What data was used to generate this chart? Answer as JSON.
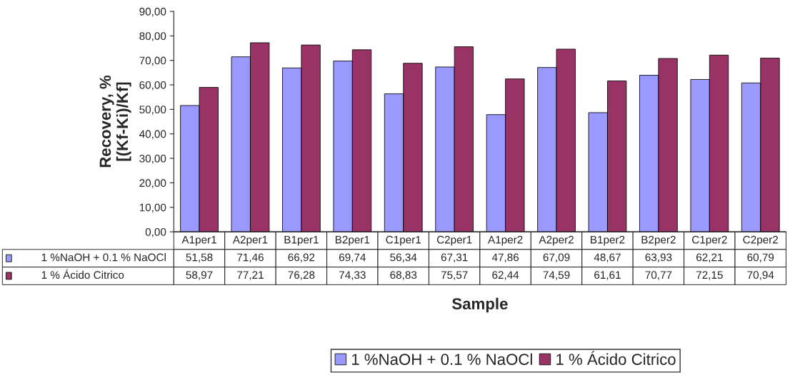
{
  "chart_data": {
    "type": "bar",
    "xlabel": "Sample",
    "ylabel": "Recovery, %\n[(Kf-Ki)/Kf]",
    "categories": [
      "A1per1",
      "A2per1",
      "B1per1",
      "B2per1",
      "C1per1",
      "C2per1",
      "A1per2",
      "A2per2",
      "B1per2",
      "B2per2",
      "C1per2",
      "C2per2"
    ],
    "series": [
      {
        "name": "1 %NaOH + 0.1 % NaOCl",
        "color": "#9999ff",
        "values": [
          51.58,
          71.46,
          66.92,
          69.74,
          56.34,
          67.31,
          47.86,
          67.09,
          48.67,
          63.93,
          62.21,
          60.79
        ],
        "value_labels": [
          "51,58",
          "71,46",
          "66,92",
          "69,74",
          "56,34",
          "67,31",
          "47,86",
          "67,09",
          "48,67",
          "63,93",
          "62,21",
          "60,79"
        ]
      },
      {
        "name": "1 % Ácido Citrico",
        "color": "#993366",
        "values": [
          58.97,
          77.21,
          76.28,
          74.33,
          68.83,
          75.57,
          62.44,
          74.59,
          61.61,
          70.77,
          72.15,
          70.94
        ],
        "value_labels": [
          "58,97",
          "77,21",
          "76,28",
          "74,33",
          "68,83",
          "75,57",
          "62,44",
          "74,59",
          "61,61",
          "70,77",
          "72,15",
          "70,94"
        ]
      }
    ],
    "ylim": [
      0,
      90
    ],
    "yticks": [
      {
        "value": 0,
        "label": "0,00"
      },
      {
        "value": 10,
        "label": "10,00"
      },
      {
        "value": 20,
        "label": "20,00"
      },
      {
        "value": 30,
        "label": "30,00"
      },
      {
        "value": 40,
        "label": "40,00"
      },
      {
        "value": 50,
        "label": "50,00"
      },
      {
        "value": 60,
        "label": "60,00"
      },
      {
        "value": 70,
        "label": "70,00"
      },
      {
        "value": 80,
        "label": "80,00"
      },
      {
        "value": 90,
        "label": "90,00"
      }
    ],
    "grid": false,
    "legend": "bottom"
  }
}
